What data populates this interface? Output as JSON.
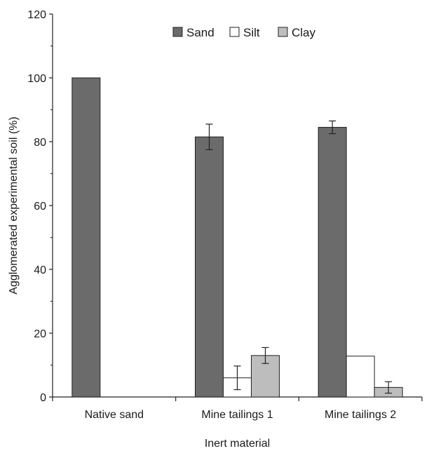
{
  "chart_data": {
    "type": "bar",
    "title": "",
    "xlabel": "Inert material",
    "ylabel": "Agglomerated experimental soil (%)",
    "ylim": [
      0,
      120
    ],
    "yticks": [
      0,
      20,
      40,
      60,
      80,
      100,
      120
    ],
    "categories": [
      "Native sand",
      "Mine tailings 1",
      "Mine tailings 2"
    ],
    "series": [
      {
        "name": "Sand",
        "color": "#6b6b6b",
        "values": [
          100,
          81.5,
          84.5
        ],
        "errors": [
          null,
          4,
          2
        ]
      },
      {
        "name": "Silt",
        "color": "#ffffff",
        "values": [
          0,
          6,
          12.8
        ],
        "errors": [
          null,
          3.7,
          null
        ]
      },
      {
        "name": "Clay",
        "color": "#bdbdbd",
        "values": [
          0,
          13,
          3
        ],
        "errors": [
          null,
          2.5,
          1.8
        ]
      }
    ],
    "legend": {
      "position": "top-center"
    },
    "grid": false
  }
}
